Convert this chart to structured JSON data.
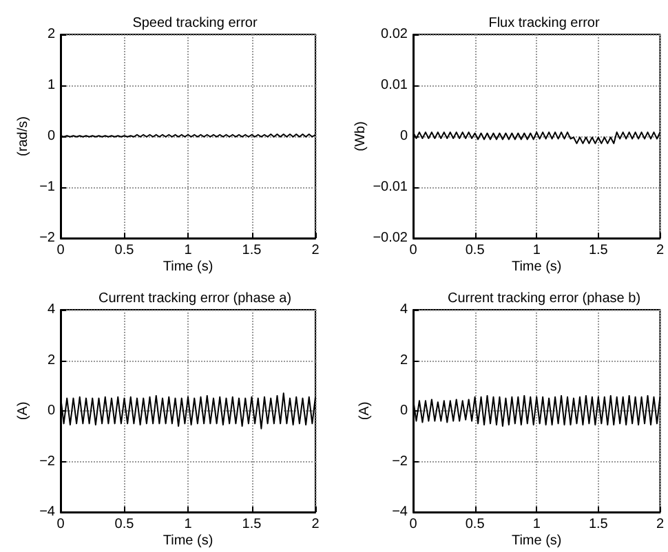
{
  "chart_data": [
    {
      "type": "line",
      "title": "Speed tracking error",
      "xlabel": "Time (s)",
      "ylabel": "(rad/s)",
      "grid": true,
      "marker": "none",
      "line_style": "solid",
      "xlim": [
        0,
        2
      ],
      "xticks": [
        0,
        0.5,
        1,
        1.5,
        2
      ],
      "ylim": [
        -2,
        2
      ],
      "yticks": [
        {
          "value": -2,
          "label": "−2"
        },
        {
          "value": -1,
          "label": "−1"
        },
        0,
        1,
        2
      ],
      "x": [
        0,
        0.025,
        0.05,
        0.075,
        0.1,
        0.125,
        0.15,
        0.175,
        0.2,
        0.225,
        0.25,
        0.275,
        0.3,
        0.325,
        0.35,
        0.375,
        0.4,
        0.425,
        0.45,
        0.475,
        0.5,
        0.525,
        0.55,
        0.575,
        0.6,
        0.625,
        0.65,
        0.675,
        0.7,
        0.725,
        0.75,
        0.775,
        0.8,
        0.825,
        0.85,
        0.875,
        0.9,
        0.925,
        0.95,
        0.975,
        1,
        1.025,
        1.05,
        1.075,
        1.1,
        1.125,
        1.15,
        1.175,
        1.2,
        1.225,
        1.25,
        1.275,
        1.3,
        1.325,
        1.35,
        1.375,
        1.4,
        1.425,
        1.45,
        1.475,
        1.5,
        1.525,
        1.55,
        1.575,
        1.6,
        1.625,
        1.65,
        1.675,
        1.7,
        1.725,
        1.75,
        1.775,
        1.8,
        1.825,
        1.85,
        1.875,
        1.9,
        1.925,
        1.95,
        1.975,
        2
      ],
      "series": [
        {
          "color": "#000000",
          "values": [
            0.01,
            -0.01,
            0.01,
            -0.01,
            0.01,
            -0.01,
            0.01,
            -0.01,
            0.01,
            -0.01,
            0.01,
            -0.01,
            0.01,
            -0.01,
            0.01,
            -0.01,
            0.01,
            -0.01,
            0.01,
            -0.01,
            0.01,
            -0.01,
            0.01,
            -0.01,
            0.03,
            -0.01,
            0.03,
            -0.01,
            0.03,
            -0.01,
            0.03,
            -0.01,
            0.03,
            -0.01,
            0.03,
            -0.01,
            0.03,
            -0.01,
            0.03,
            -0.01,
            0.03,
            -0.01,
            0.03,
            -0.01,
            0.03,
            -0.01,
            0.03,
            -0.01,
            0.03,
            -0.01,
            0.03,
            -0.01,
            0.03,
            -0.01,
            0.03,
            -0.01,
            0.03,
            -0.01,
            0.03,
            -0.01,
            0.03,
            -0.01,
            0.03,
            -0.01,
            0.03,
            -0.01,
            0.04,
            -0.01,
            0.04,
            -0.01,
            0.04,
            -0.01,
            0.04,
            -0.01,
            0.04,
            -0.01,
            0.04,
            -0.01,
            0.04,
            -0.01,
            0.03
          ]
        }
      ]
    },
    {
      "type": "line",
      "title": "Flux tracking error",
      "xlabel": "Time (s)",
      "ylabel": "(Wb)",
      "grid": true,
      "marker": "none",
      "line_style": "solid",
      "xlim": [
        0,
        2
      ],
      "xticks": [
        0,
        0.5,
        1,
        1.5,
        2
      ],
      "ylim": [
        -0.02,
        0.02
      ],
      "yticks": [
        {
          "value": -0.02,
          "label": "−0.02"
        },
        {
          "value": -0.01,
          "label": "−0.01"
        },
        0,
        0.01,
        0.02
      ],
      "x": [
        0,
        0.025,
        0.05,
        0.075,
        0.1,
        0.125,
        0.15,
        0.175,
        0.2,
        0.225,
        0.25,
        0.275,
        0.3,
        0.325,
        0.35,
        0.375,
        0.4,
        0.425,
        0.45,
        0.475,
        0.5,
        0.525,
        0.55,
        0.575,
        0.6,
        0.625,
        0.65,
        0.675,
        0.7,
        0.725,
        0.75,
        0.775,
        0.8,
        0.825,
        0.85,
        0.875,
        0.9,
        0.925,
        0.95,
        0.975,
        1,
        1.025,
        1.05,
        1.075,
        1.1,
        1.125,
        1.15,
        1.175,
        1.2,
        1.225,
        1.25,
        1.275,
        1.3,
        1.325,
        1.35,
        1.375,
        1.4,
        1.425,
        1.45,
        1.475,
        1.5,
        1.525,
        1.55,
        1.575,
        1.6,
        1.625,
        1.65,
        1.675,
        1.7,
        1.725,
        1.75,
        1.775,
        1.8,
        1.825,
        1.85,
        1.875,
        1.9,
        1.925,
        1.95,
        1.975,
        2
      ],
      "series": [
        {
          "color": "#000000",
          "values": [
            0.0008,
            -0.0004,
            0.0008,
            -0.0004,
            0.0008,
            -0.0004,
            0.0008,
            -0.0004,
            0.0008,
            -0.0004,
            0.0008,
            -0.0004,
            0.0008,
            -0.0004,
            0.0008,
            -0.0004,
            0.0008,
            -0.0004,
            0.0008,
            -0.0004,
            0.0006,
            -0.0006,
            0.0006,
            -0.0006,
            0.0006,
            -0.0006,
            0.0006,
            -0.0006,
            0.0006,
            -0.0006,
            0.0006,
            -0.0006,
            0.0006,
            -0.0006,
            0.0006,
            -0.0006,
            0.0006,
            -0.0006,
            0.0006,
            -0.0006,
            0.0008,
            -0.0005,
            0.0008,
            -0.0005,
            0.0008,
            -0.0005,
            0.0008,
            -0.0005,
            0.0008,
            -0.0005,
            0.0008,
            -0.0005,
            -0.0002,
            -0.0014,
            -0.0002,
            -0.0014,
            -0.0002,
            -0.0014,
            -0.0002,
            -0.0014,
            -0.0002,
            -0.0014,
            -0.0002,
            -0.0014,
            -0.0002,
            -0.0014,
            0.0008,
            -0.0005,
            0.0008,
            -0.0005,
            0.0008,
            -0.0005,
            0.0008,
            -0.0005,
            0.0008,
            -0.0005,
            0.0008,
            -0.0005,
            0.0008,
            -0.0005,
            0.0008
          ]
        }
      ]
    },
    {
      "type": "line",
      "title": "Current tracking error (phase a)",
      "xlabel": "Time (s)",
      "ylabel": "(A)",
      "grid": true,
      "marker": "none",
      "line_style": "solid",
      "xlim": [
        0,
        2
      ],
      "xticks": [
        0,
        0.5,
        1,
        1.5,
        2
      ],
      "ylim": [
        -4,
        4
      ],
      "yticks": [
        {
          "value": -4,
          "label": "−4"
        },
        {
          "value": -2,
          "label": "−2"
        },
        0,
        2,
        4
      ],
      "x": [
        0,
        0.025,
        0.05,
        0.075,
        0.1,
        0.125,
        0.15,
        0.175,
        0.2,
        0.225,
        0.25,
        0.275,
        0.3,
        0.325,
        0.35,
        0.375,
        0.4,
        0.425,
        0.45,
        0.475,
        0.5,
        0.525,
        0.55,
        0.575,
        0.6,
        0.625,
        0.65,
        0.675,
        0.7,
        0.725,
        0.75,
        0.775,
        0.8,
        0.825,
        0.85,
        0.875,
        0.9,
        0.925,
        0.95,
        0.975,
        1,
        1.025,
        1.05,
        1.075,
        1.1,
        1.125,
        1.15,
        1.175,
        1.2,
        1.225,
        1.25,
        1.275,
        1.3,
        1.325,
        1.35,
        1.375,
        1.4,
        1.425,
        1.45,
        1.475,
        1.5,
        1.525,
        1.55,
        1.575,
        1.6,
        1.625,
        1.65,
        1.675,
        1.7,
        1.725,
        1.75,
        1.775,
        1.8,
        1.825,
        1.85,
        1.875,
        1.9,
        1.925,
        1.95,
        1.975,
        2
      ],
      "series": [
        {
          "color": "#000000",
          "values": [
            0.55,
            -0.5,
            0.5,
            -0.55,
            0.5,
            -0.5,
            0.55,
            -0.5,
            0.5,
            -0.5,
            0.5,
            -0.55,
            0.5,
            -0.5,
            0.55,
            -0.5,
            0.5,
            -0.5,
            0.55,
            -0.5,
            0.5,
            -0.5,
            0.55,
            -0.5,
            0.5,
            -0.55,
            0.5,
            -0.5,
            0.55,
            -0.5,
            0.6,
            -0.5,
            0.5,
            -0.5,
            0.55,
            -0.5,
            0.5,
            -0.6,
            0.5,
            -0.5,
            0.55,
            -0.55,
            0.5,
            -0.5,
            0.55,
            -0.5,
            0.6,
            -0.5,
            0.5,
            -0.5,
            0.55,
            -0.55,
            0.5,
            -0.5,
            0.55,
            -0.5,
            0.5,
            -0.6,
            0.5,
            -0.5,
            0.55,
            -0.5,
            0.5,
            -0.7,
            0.55,
            -0.5,
            0.5,
            -0.5,
            0.6,
            -0.5,
            0.7,
            -0.5,
            0.5,
            -0.55,
            0.55,
            -0.5,
            0.5,
            -0.55,
            0.55,
            -0.5,
            0.55
          ]
        }
      ]
    },
    {
      "type": "line",
      "title": "Current tracking error (phase b)",
      "xlabel": "Time (s)",
      "ylabel": "(A)",
      "grid": true,
      "marker": "none",
      "line_style": "solid",
      "xlim": [
        0,
        2
      ],
      "xticks": [
        0,
        0.5,
        1,
        1.5,
        2
      ],
      "ylim": [
        -4,
        4
      ],
      "yticks": [
        {
          "value": -4,
          "label": "−4"
        },
        {
          "value": -2,
          "label": "−2"
        },
        0,
        2,
        4
      ],
      "x": [
        0,
        0.025,
        0.05,
        0.075,
        0.1,
        0.125,
        0.15,
        0.175,
        0.2,
        0.225,
        0.25,
        0.275,
        0.3,
        0.325,
        0.35,
        0.375,
        0.4,
        0.425,
        0.45,
        0.475,
        0.5,
        0.525,
        0.55,
        0.575,
        0.6,
        0.625,
        0.65,
        0.675,
        0.7,
        0.725,
        0.75,
        0.775,
        0.8,
        0.825,
        0.85,
        0.875,
        0.9,
        0.925,
        0.95,
        0.975,
        1,
        1.025,
        1.05,
        1.075,
        1.1,
        1.125,
        1.15,
        1.175,
        1.2,
        1.225,
        1.25,
        1.275,
        1.3,
        1.325,
        1.35,
        1.375,
        1.4,
        1.425,
        1.45,
        1.475,
        1.5,
        1.525,
        1.55,
        1.575,
        1.6,
        1.625,
        1.65,
        1.675,
        1.7,
        1.725,
        1.75,
        1.775,
        1.8,
        1.825,
        1.85,
        1.875,
        1.9,
        1.925,
        1.95,
        1.975,
        2
      ],
      "series": [
        {
          "color": "#000000",
          "values": [
            0.45,
            -0.4,
            0.4,
            -0.45,
            0.4,
            -0.4,
            0.45,
            -0.4,
            0.35,
            -0.4,
            0.4,
            -0.45,
            0.4,
            -0.4,
            0.45,
            -0.4,
            0.4,
            -0.35,
            0.45,
            -0.4,
            0.55,
            -0.5,
            0.55,
            -0.55,
            0.6,
            -0.5,
            0.55,
            -0.55,
            0.55,
            -0.6,
            0.5,
            -0.55,
            0.55,
            -0.5,
            0.55,
            -0.55,
            0.6,
            -0.5,
            0.55,
            -0.55,
            0.55,
            -0.5,
            0.55,
            -0.55,
            0.5,
            -0.55,
            0.55,
            -0.5,
            0.6,
            -0.55,
            0.55,
            -0.55,
            0.5,
            -0.5,
            0.55,
            -0.55,
            0.6,
            -0.5,
            0.55,
            -0.55,
            0.55,
            -0.5,
            0.55,
            -0.55,
            0.6,
            -0.55,
            0.55,
            -0.5,
            0.55,
            -0.55,
            0.6,
            -0.5,
            0.55,
            -0.55,
            0.55,
            -0.5,
            0.6,
            -0.55,
            0.55,
            -0.5,
            0.55
          ]
        }
      ]
    }
  ]
}
